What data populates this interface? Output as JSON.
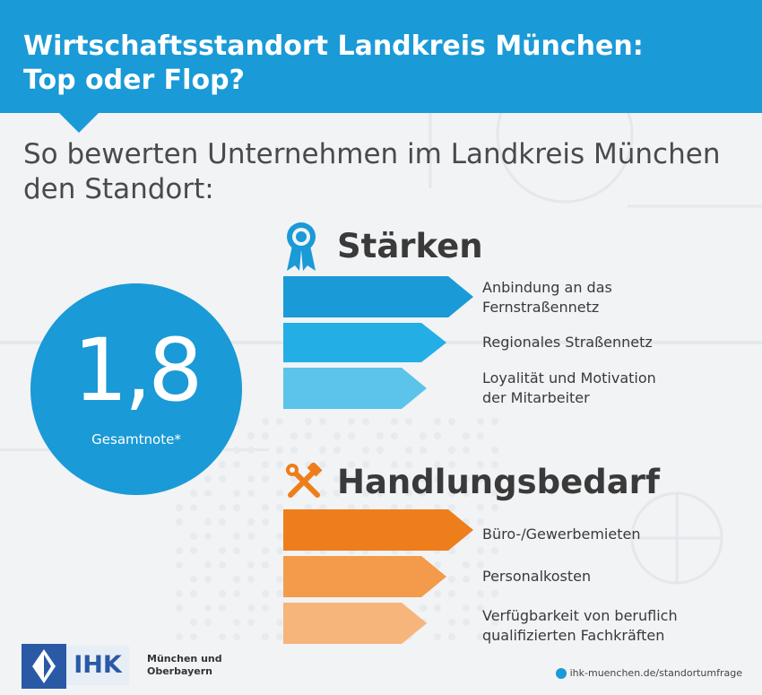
{
  "header": {
    "title_line1": "Wirtschaftsstandort Landkreis München:",
    "title_line2": "Top oder Flop?"
  },
  "intro": {
    "line1": "So bewerten Unternehmen im Landkreis München",
    "line2": "den Standort:"
  },
  "grade": {
    "value": "1,8",
    "label": "Gesamtnote*"
  },
  "strengths": {
    "title": "Stärken",
    "icon": "award-ribbon-icon",
    "items": [
      {
        "line1": "Anbindung an das",
        "line2": "Fernstraßennetz",
        "color": "#1a9ad6"
      },
      {
        "line1": "Regionales Straßennetz",
        "line2": "",
        "color": "#23aee6"
      },
      {
        "line1": "Loyalität und Motivation",
        "line2": "der Mitarbeiter",
        "color": "#5cc3ea"
      }
    ]
  },
  "needs": {
    "title": "Handlungsbedarf",
    "icon": "tools-icon",
    "items": [
      {
        "line1": "Büro-/Gewerbemieten",
        "line2": "",
        "color": "#ee7d1b"
      },
      {
        "line1": "Personalkosten",
        "line2": "",
        "color": "#f39b4a"
      },
      {
        "line1": "Verfügbarkeit von beruflich",
        "line2": "qualifizierten Fachkräften",
        "color": "#f6b57a"
      }
    ]
  },
  "footer": {
    "logo_text": "IHK",
    "logo_sub_line1": "München und",
    "logo_sub_line2": "Oberbayern",
    "url": "ihk-muenchen.de/standortumfrage"
  },
  "colors": {
    "primary_blue": "#1a9ad6",
    "primary_orange": "#ee7d1b",
    "ihk_blue": "#2a5aa6"
  }
}
